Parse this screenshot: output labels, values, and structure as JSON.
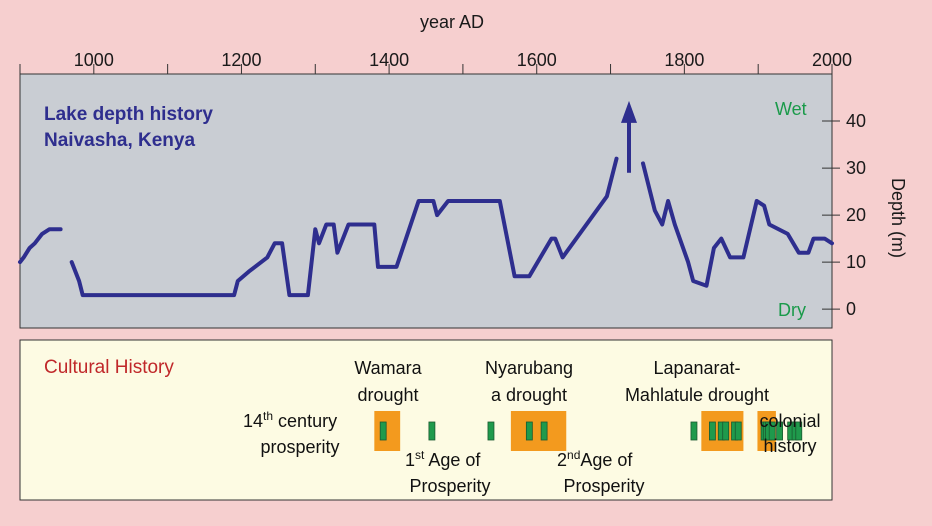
{
  "chart_data": [
    {
      "type": "line",
      "title": "Lake depth history",
      "subtitle": "Naivasha, Kenya",
      "xlabel": "year AD",
      "ylabel": "Depth (m)",
      "xlim": [
        900,
        2000
      ],
      "ylim": [
        -4,
        50
      ],
      "x_ticks": [
        1000,
        1200,
        1400,
        1600,
        1800,
        2000
      ],
      "y_ticks": [
        0,
        10,
        20,
        30,
        40
      ],
      "wet_label": "Wet",
      "dry_label": "Dry",
      "line_color": "#2e2e8e",
      "background": "#c9cdd3",
      "series": [
        {
          "segments": [
            [
              [
                900,
                10
              ],
              [
                905,
                11
              ],
              [
                913,
                13
              ],
              [
                920,
                14
              ],
              [
                930,
                16
              ],
              [
                940,
                17
              ],
              [
                955,
                17
              ]
            ],
            [
              [
                970,
                10
              ],
              [
                980,
                6
              ],
              [
                985,
                3
              ],
              [
                1000,
                3
              ],
              [
                1100,
                3
              ],
              [
                1190,
                3
              ],
              [
                1195,
                6
              ],
              [
                1210,
                8
              ],
              [
                1235,
                11
              ],
              [
                1245,
                14
              ],
              [
                1255,
                14
              ],
              [
                1265,
                3
              ],
              [
                1290,
                3
              ],
              [
                1300,
                17
              ],
              [
                1305,
                14
              ],
              [
                1315,
                18
              ],
              [
                1325,
                18
              ],
              [
                1330,
                12
              ],
              [
                1345,
                18
              ],
              [
                1380,
                18
              ],
              [
                1385,
                9
              ],
              [
                1410,
                9
              ],
              [
                1440,
                23
              ],
              [
                1460,
                23
              ],
              [
                1465,
                20
              ],
              [
                1480,
                23
              ],
              [
                1550,
                23
              ],
              [
                1570,
                7
              ],
              [
                1590,
                7
              ],
              [
                1620,
                15
              ],
              [
                1625,
                15
              ],
              [
                1635,
                11
              ],
              [
                1695,
                24
              ],
              [
                1708,
                32
              ]
            ],
            [
              [
                1744,
                31
              ],
              [
                1760,
                21
              ],
              [
                1770,
                18
              ],
              [
                1778,
                23
              ],
              [
                1787,
                18
              ],
              [
                1805,
                10
              ],
              [
                1812,
                6
              ],
              [
                1830,
                5
              ],
              [
                1840,
                13
              ],
              [
                1850,
                15
              ],
              [
                1862,
                11
              ],
              [
                1880,
                11
              ],
              [
                1898,
                23
              ],
              [
                1908,
                22
              ],
              [
                1915,
                18
              ],
              [
                1940,
                16
              ],
              [
                1955,
                12
              ],
              [
                1968,
                12
              ],
              [
                1975,
                15
              ],
              [
                1990,
                15
              ],
              [
                2000,
                14
              ]
            ]
          ]
        }
      ],
      "annotations": [
        {
          "type": "arrow",
          "x": 1725,
          "y_from": 29,
          "y_to": 43
        }
      ]
    },
    {
      "type": "table",
      "title": "Cultural History",
      "events": [
        {
          "label_lines": [
            "Wamara",
            "drought"
          ]
        },
        {
          "label_lines": [
            "Nyarubang",
            "a drought"
          ]
        },
        {
          "label_lines": [
            "Lapanarat-",
            "Mahlatule drought"
          ]
        }
      ],
      "prosperity": [
        {
          "ord": "14",
          "sup": "th",
          "rest": " century",
          "line2": "prosperity"
        },
        {
          "ord": "1",
          "sup": "st",
          "rest": " Age of",
          "line2": "Prosperity"
        },
        {
          "ord": "2",
          "sup": "nd",
          "rest": "Age of",
          "line2": "Prosperity"
        }
      ],
      "colonial_lines": [
        "colonial",
        "history"
      ],
      "drought_periods": [
        [
          1380,
          1415
        ],
        [
          1565,
          1640
        ],
        [
          1823,
          1880
        ],
        [
          1899,
          1924
        ]
      ],
      "marker_years": [
        1392,
        1458,
        1538,
        1590,
        1610,
        1813,
        1838,
        1850,
        1856,
        1868,
        1873,
        1908,
        1911,
        1914,
        1919,
        1929,
        1944,
        1950,
        1955
      ],
      "drought_color": "#f39a1e",
      "marker_color": "#1f9a4c"
    }
  ]
}
